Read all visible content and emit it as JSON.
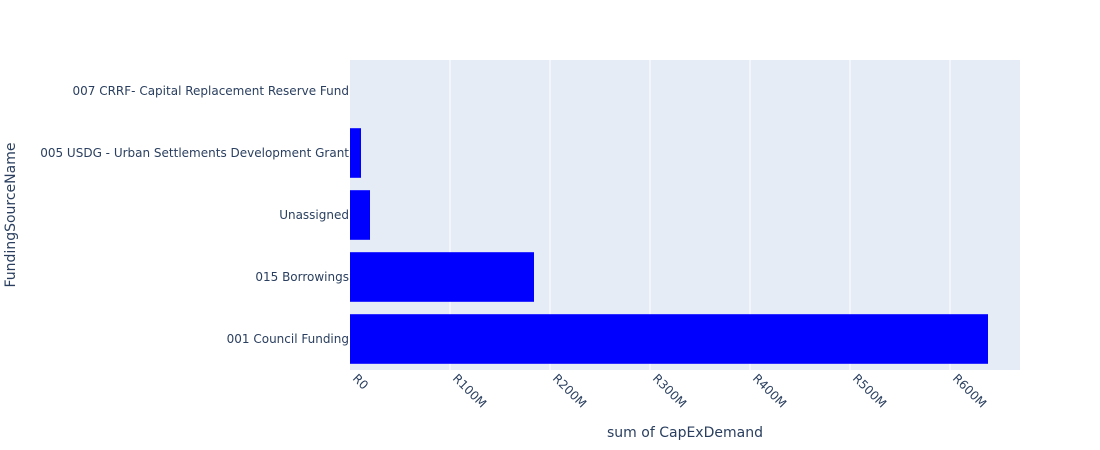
{
  "chart_data": {
    "type": "bar",
    "orientation": "horizontal",
    "categories": [
      "001 Council Funding",
      "015 Borrowings",
      "Unassigned",
      "005 USDG - Urban Settlements Development Grant",
      "007 CRRF- Capital Replacement Reserve Fund"
    ],
    "values": [
      638000000,
      184000000,
      20000000,
      11000000,
      0
    ],
    "xlabel": "sum of CapExDemand",
    "ylabel": "FundingSourceName",
    "xlim": [
      0,
      670000000
    ],
    "x_ticks": [
      0,
      100000000,
      200000000,
      300000000,
      400000000,
      500000000,
      600000000
    ],
    "x_tick_labels": [
      "R0",
      "R100M",
      "R200M",
      "R300M",
      "R400M",
      "R500M",
      "R600M"
    ],
    "grid": true,
    "bar_color": "#0000ff",
    "plot_background": "#e5ecf6",
    "gridline_color": "#ffffff",
    "text_color": "#2a3f5f"
  }
}
